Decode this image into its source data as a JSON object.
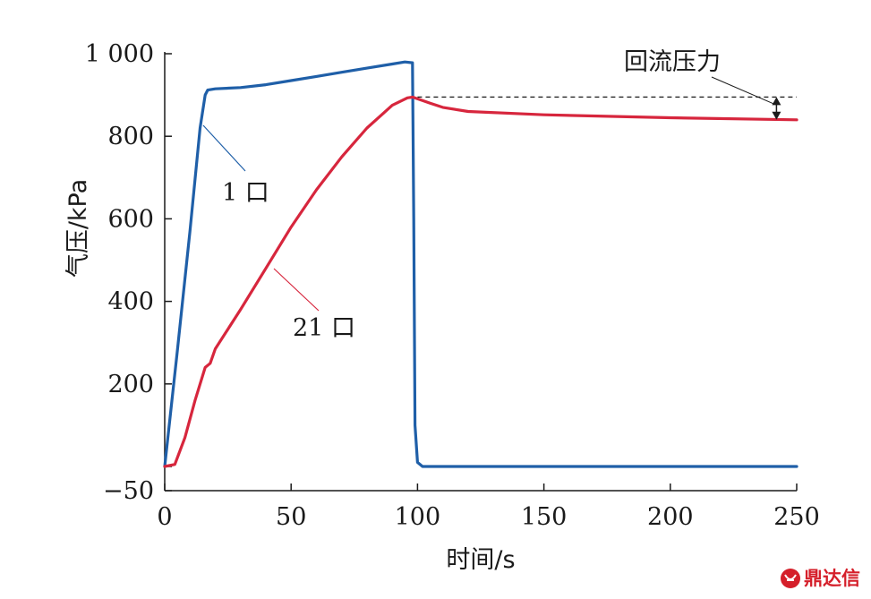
{
  "chart_data": {
    "type": "line",
    "xlabel": "时间/s",
    "ylabel": "气压/kPa",
    "xlim": [
      0,
      250
    ],
    "ylim": [
      -50,
      1000
    ],
    "xticks": [
      0,
      50,
      100,
      150,
      200,
      250
    ],
    "xtick_labels": [
      "0",
      "50",
      "100",
      "150",
      "200",
      "250"
    ],
    "yticks": [
      -50,
      200,
      400,
      600,
      800,
      1000
    ],
    "ytick_labels": [
      "−50",
      "200",
      "400",
      "600",
      "800",
      "1 000"
    ],
    "grid": false,
    "series": [
      {
        "name": "1 口",
        "color": "#1f5fa8",
        "x": [
          0,
          5,
          10,
          14,
          16,
          17,
          20,
          30,
          40,
          50,
          60,
          70,
          80,
          90,
          95,
          98,
          98.5,
          99,
          100,
          102,
          110,
          130,
          150,
          200,
          250
        ],
        "y": [
          0,
          280,
          570,
          820,
          900,
          912,
          915,
          918,
          925,
          935,
          945,
          955,
          965,
          975,
          980,
          978,
          600,
          100,
          10,
          0,
          0,
          0,
          0,
          0,
          0
        ]
      },
      {
        "name": "21 口",
        "color": "#d7263d",
        "x": [
          0,
          4,
          8,
          12,
          16,
          18,
          20,
          30,
          40,
          50,
          60,
          70,
          80,
          90,
          96,
          98,
          105,
          110,
          120,
          150,
          200,
          250
        ],
        "y": [
          0,
          5,
          70,
          160,
          240,
          250,
          285,
          380,
          480,
          580,
          670,
          750,
          820,
          875,
          893,
          895,
          880,
          870,
          860,
          852,
          845,
          840
        ]
      }
    ],
    "annotations": [
      {
        "text": "回流压力",
        "kind": "arrow-range",
        "x": 242,
        "y_from": 840,
        "y_to": 895
      },
      {
        "text": "1 口",
        "kind": "callout",
        "series": "1 口"
      },
      {
        "text": "21 口",
        "kind": "callout",
        "series": "21 口"
      }
    ],
    "reference_line": {
      "y": 895,
      "style": "dashed"
    }
  },
  "watermark": {
    "text": "鼎达信",
    "color": "#d51f2a"
  }
}
